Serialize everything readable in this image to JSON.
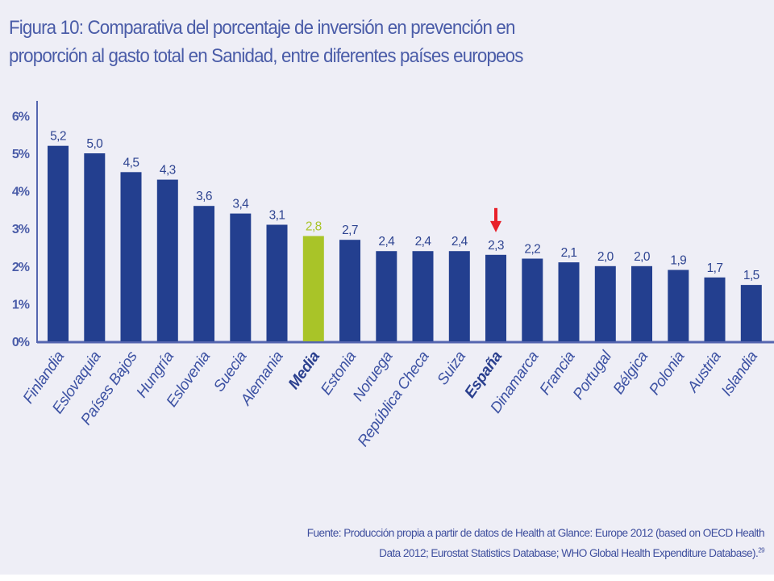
{
  "figure": {
    "title_line1": "Figura 10: Comparativa del porcentaje de inversión en prevención en",
    "title_line2": "proporción al gasto total en Sanidad, entre diferentes países europeos",
    "source_line1": "Fuente: Producción propia a partir de datos de Health at Glance: Europe 2012 (based on OECD Health",
    "source_line2": "Data 2012; Eurostat Statistics Database; WHO Global Health Expenditure Database).",
    "source_ref": "29"
  },
  "colors": {
    "bar": "#233f8f",
    "highlight_bar": "#a9c428",
    "axis": "#5566b0",
    "marker_arrow": "#e8202a"
  },
  "chart_data": {
    "type": "bar",
    "title": "Comparativa del porcentaje de inversión en prevención en proporción al gasto total en Sanidad, entre diferentes países europeos",
    "xlabel": "",
    "ylabel": "",
    "ylim": [
      0,
      6
    ],
    "yticks": [
      "0%",
      "1%",
      "2%",
      "3%",
      "4%",
      "5%",
      "6%"
    ],
    "ytick_values": [
      0,
      1,
      2,
      3,
      4,
      5,
      6
    ],
    "grid": false,
    "legend": "none",
    "categories": [
      "Finlandia",
      "Eslovaquia",
      "Países Bajos",
      "Hungría",
      "Eslovenia",
      "Suecia",
      "Alemania",
      "Media",
      "Estonia",
      "Noruega",
      "República Checa",
      "Suiza",
      "España",
      "Dinamarca",
      "Francia",
      "Portugal",
      "Bélgica",
      "Polonia",
      "Austria",
      "Islandia"
    ],
    "values": [
      5.2,
      5.0,
      4.5,
      4.3,
      3.6,
      3.4,
      3.1,
      2.8,
      2.7,
      2.4,
      2.4,
      2.4,
      2.3,
      2.2,
      2.1,
      2.0,
      2.0,
      1.9,
      1.7,
      1.5
    ],
    "value_labels": [
      "5,2",
      "5,0",
      "4,5",
      "4,3",
      "3,6",
      "3,4",
      "3,1",
      "2,8",
      "2,7",
      "2,4",
      "2,4",
      "2,4",
      "2,3",
      "2,2",
      "2,1",
      "2,0",
      "2,0",
      "1,9",
      "1,7",
      "1,5"
    ],
    "highlighted_category": "Media",
    "bold_categories": [
      "Media",
      "España"
    ],
    "annotations": [
      {
        "type": "arrow",
        "target": "España",
        "direction": "down",
        "color": "#e8202a"
      }
    ],
    "unit": "%"
  }
}
